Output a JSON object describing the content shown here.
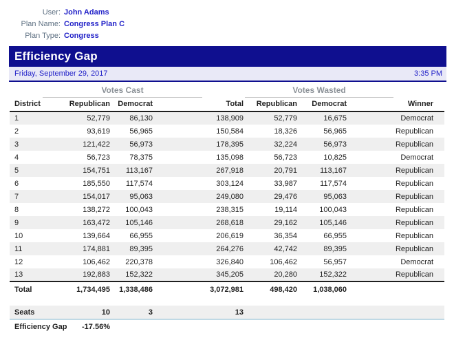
{
  "meta": {
    "user_label": "User:",
    "user_value": "John Adams",
    "plan_name_label": "Plan Name:",
    "plan_name_value": "Congress Plan C",
    "plan_type_label": "Plan Type:",
    "plan_type_value": "Congress"
  },
  "header": {
    "title": "Efficiency Gap",
    "date": "Friday, September 29, 2017",
    "time": "3:35 PM"
  },
  "table": {
    "group_headers": {
      "votes_cast": "Votes Cast",
      "votes_wasted": "Votes Wasted"
    },
    "columns": [
      "District",
      "Republican",
      "Democrat",
      "Total",
      "Republican",
      "Democrat",
      "Winner"
    ],
    "rows": [
      [
        "1",
        "52,779",
        "86,130",
        "138,909",
        "52,779",
        "16,675",
        "Democrat"
      ],
      [
        "2",
        "93,619",
        "56,965",
        "150,584",
        "18,326",
        "56,965",
        "Republican"
      ],
      [
        "3",
        "121,422",
        "56,973",
        "178,395",
        "32,224",
        "56,973",
        "Republican"
      ],
      [
        "4",
        "56,723",
        "78,375",
        "135,098",
        "56,723",
        "10,825",
        "Democrat"
      ],
      [
        "5",
        "154,751",
        "113,167",
        "267,918",
        "20,791",
        "113,167",
        "Republican"
      ],
      [
        "6",
        "185,550",
        "117,574",
        "303,124",
        "33,987",
        "117,574",
        "Republican"
      ],
      [
        "7",
        "154,017",
        "95,063",
        "249,080",
        "29,476",
        "95,063",
        "Republican"
      ],
      [
        "8",
        "138,272",
        "100,043",
        "238,315",
        "19,114",
        "100,043",
        "Republican"
      ],
      [
        "9",
        "163,472",
        "105,146",
        "268,618",
        "29,162",
        "105,146",
        "Republican"
      ],
      [
        "10",
        "139,664",
        "66,955",
        "206,619",
        "36,354",
        "66,955",
        "Republican"
      ],
      [
        "11",
        "174,881",
        "89,395",
        "264,276",
        "42,742",
        "89,395",
        "Republican"
      ],
      [
        "12",
        "106,462",
        "220,378",
        "326,840",
        "106,462",
        "56,957",
        "Democrat"
      ],
      [
        "13",
        "192,883",
        "152,322",
        "345,205",
        "20,280",
        "152,322",
        "Republican"
      ]
    ],
    "total_row": [
      "Total",
      "1,734,495",
      "1,338,486",
      "3,072,981",
      "498,420",
      "1,038,060",
      ""
    ]
  },
  "summary": {
    "seats_label": "Seats",
    "seats_republican": "10",
    "seats_democrat": "3",
    "seats_total": "13",
    "efficiency_gap_label": "Efficiency Gap",
    "efficiency_gap_value": "-17.56%"
  },
  "colors": {
    "title-bar-bg": "#0F0F8F",
    "title-bar-text": "#FFFFFF",
    "date-bar-bg": "#E9E9F7",
    "blue-text": "#2222C8",
    "meta-label-text": "#5F7183",
    "group-header-text": "#8C9298",
    "row-shade": "#EFEFEF",
    "seats-underline": "#BFD9E5",
    "rule-dark": "#1F1F1F"
  }
}
